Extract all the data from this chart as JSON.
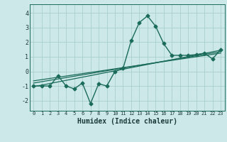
{
  "title": "",
  "xlabel": "Humidex (Indice chaleur)",
  "ylabel": "",
  "background_color": "#cde8e8",
  "grid_color": "#aacece",
  "line_color": "#1a6b5a",
  "xlim": [
    -0.5,
    23.5
  ],
  "ylim": [
    -2.7,
    4.6
  ],
  "yticks": [
    -2,
    -1,
    0,
    1,
    2,
    3,
    4
  ],
  "xticks": [
    0,
    1,
    2,
    3,
    4,
    5,
    6,
    7,
    8,
    9,
    10,
    11,
    12,
    13,
    14,
    15,
    16,
    17,
    18,
    19,
    20,
    21,
    22,
    23
  ],
  "series1_x": [
    0,
    1,
    2,
    3,
    4,
    5,
    6,
    7,
    8,
    9,
    10,
    11,
    12,
    13,
    14,
    15,
    16,
    17,
    18,
    19,
    20,
    21,
    22,
    23
  ],
  "series1_y": [
    -1.0,
    -1.0,
    -1.0,
    -0.3,
    -1.0,
    -1.2,
    -0.8,
    -2.2,
    -0.85,
    -1.0,
    0.0,
    0.2,
    2.1,
    3.35,
    3.8,
    3.1,
    1.9,
    1.1,
    1.1,
    1.1,
    1.15,
    1.25,
    0.85,
    1.5
  ],
  "series2_x": [
    0,
    23
  ],
  "series2_y": [
    -1.05,
    1.45
  ],
  "series3_x": [
    0,
    23
  ],
  "series3_y": [
    -0.8,
    1.35
  ],
  "series4_x": [
    0,
    23
  ],
  "series4_y": [
    -0.65,
    1.25
  ],
  "marker": "D",
  "markersize": 2.5,
  "linewidth": 1.0,
  "regression_linewidth": 0.9
}
